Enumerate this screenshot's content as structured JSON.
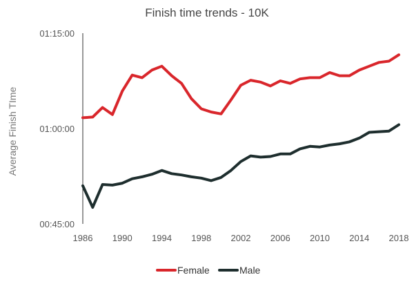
{
  "chart_data": {
    "type": "line",
    "title": "Finish time trends - 10K",
    "xlabel": "",
    "ylabel": "Average Finish TIme",
    "xlim": [
      1986,
      2018
    ],
    "ylim": [
      45,
      75
    ],
    "x_ticks": [
      1986,
      1990,
      1994,
      1998,
      2002,
      2006,
      2010,
      2014,
      2018
    ],
    "y_ticks": [
      {
        "value": 45,
        "label": "00:45:00"
      },
      {
        "value": 60,
        "label": "01:00:00"
      },
      {
        "value": 75,
        "label": "01:15:00"
      }
    ],
    "grid": false,
    "legend": "bottom",
    "x": [
      1986,
      1987,
      1988,
      1989,
      1990,
      1991,
      1992,
      1993,
      1994,
      1995,
      1996,
      1997,
      1998,
      1999,
      2000,
      2001,
      2002,
      2003,
      2004,
      2005,
      2006,
      2007,
      2008,
      2009,
      2010,
      2011,
      2012,
      2013,
      2014,
      2015,
      2016,
      2017,
      2018
    ],
    "series": [
      {
        "name": "Female",
        "color": "#d9262b",
        "values": [
          61.7,
          61.8,
          63.3,
          62.2,
          65.9,
          68.4,
          68.0,
          69.2,
          69.8,
          68.3,
          67.1,
          64.7,
          63.1,
          62.6,
          62.3,
          64.5,
          66.8,
          67.6,
          67.3,
          66.7,
          67.5,
          67.1,
          67.8,
          68.0,
          68.0,
          68.8,
          68.3,
          68.3,
          69.2,
          69.8,
          70.4,
          70.6,
          71.6
        ]
      },
      {
        "name": "Male",
        "color": "#1e2e2e",
        "values": [
          51.0,
          47.6,
          51.2,
          51.1,
          51.4,
          52.1,
          52.4,
          52.8,
          53.4,
          52.9,
          52.7,
          52.4,
          52.2,
          51.8,
          52.3,
          53.4,
          54.8,
          55.7,
          55.5,
          55.6,
          56.0,
          56.0,
          56.8,
          57.2,
          57.1,
          57.4,
          57.6,
          57.9,
          58.5,
          59.4,
          59.5,
          59.6,
          60.6
        ]
      }
    ]
  }
}
